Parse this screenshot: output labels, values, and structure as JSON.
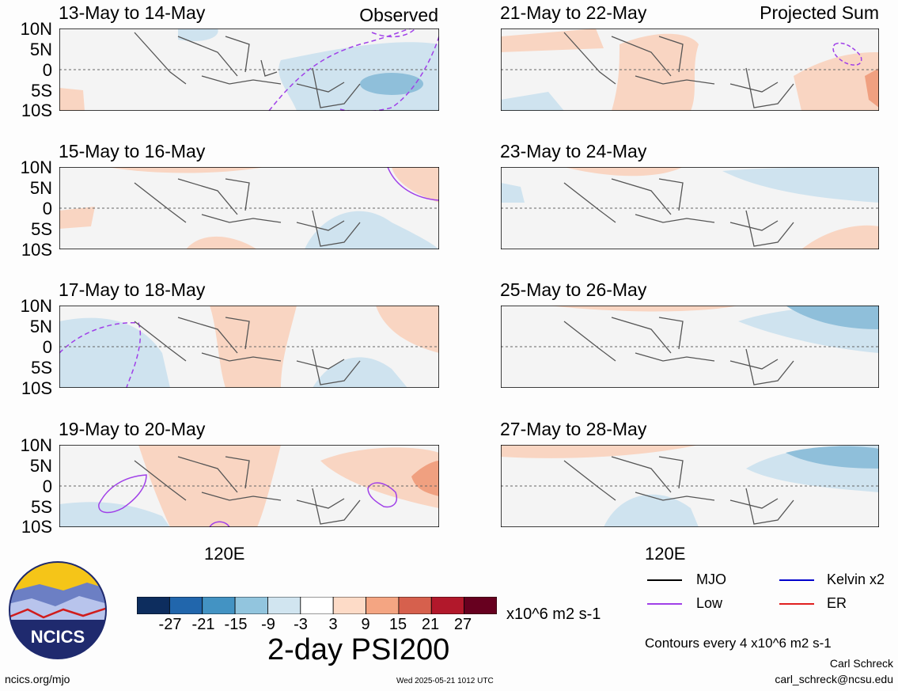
{
  "header": {
    "observed_label": "Observed",
    "projected_label": "Projected Sum"
  },
  "panels": [
    {
      "title": "13-May to 14-May",
      "column": "observed"
    },
    {
      "title": "15-May to 16-May",
      "column": "observed"
    },
    {
      "title": "17-May to 18-May",
      "column": "observed"
    },
    {
      "title": "19-May to 20-May",
      "column": "observed"
    },
    {
      "title": "21-May to 22-May",
      "column": "projected"
    },
    {
      "title": "23-May to 24-May",
      "column": "projected"
    },
    {
      "title": "25-May to 26-May",
      "column": "projected"
    },
    {
      "title": "27-May to 28-May",
      "column": "projected"
    }
  ],
  "axes": {
    "lat_labels": [
      "10N",
      "5N",
      "0",
      "5S",
      "10S"
    ],
    "lon_label": "120E"
  },
  "colorbar": {
    "ticks": [
      "-27",
      "-21",
      "-15",
      "-9",
      "-3",
      "3",
      "9",
      "15",
      "21",
      "27"
    ],
    "colors": [
      "#0d2d5e",
      "#2166ac",
      "#4393c3",
      "#92c5de",
      "#d1e5f0",
      "#ffffff",
      "#fddbc7",
      "#f4a582",
      "#d6604d",
      "#b2182b",
      "#67001f"
    ],
    "units": "x10^6 m2 s-1",
    "title": "2-day PSI200"
  },
  "legend": {
    "mjo": "MJO",
    "low": "Low",
    "kelvin": "Kelvin x2",
    "er": "ER",
    "colors": {
      "mjo": "#000000",
      "low": "#a040e8",
      "kelvin": "#0000cc",
      "er": "#e02020"
    }
  },
  "footer": {
    "contours_note": "Contours every 4 x10^6 m2 s-1",
    "author": "Carl Schreck",
    "email": "carl_schreck@ncsu.edu",
    "site": "ncics.org/mjo",
    "timestamp": "Wed 2025-05-21 1012 UTC",
    "logo_text": "NCICS"
  },
  "chart_data": {
    "type": "heatmap",
    "variable": "2-day PSI200",
    "lat_range": [
      -10,
      10
    ],
    "contour_interval": 4,
    "panels_shading_summary": [
      {
        "title": "13-May to 14-May",
        "negative_region": "east of 125E, minimum near -15 around 5S 140E",
        "positive_region": "weak near 10S west edge"
      },
      {
        "title": "15-May to 16-May",
        "negative_region": "weak south-east near 5S-10S 130E-140E",
        "positive_region": "weak north-east corner and south-west"
      },
      {
        "title": "17-May to 18-May",
        "negative_region": "west and south-east",
        "positive_region": "central band near 120E-125E and east"
      },
      {
        "title": "19-May to 20-May",
        "negative_region": "weak south-west",
        "positive_region": "central and east, strongest near east edge around 9 to 15"
      },
      {
        "title": "21-May to 22-May",
        "negative_region": "weak",
        "positive_region": "around 120E and south-east"
      },
      {
        "title": "23-May to 24-May",
        "negative_region": "north-east and west",
        "positive_region": "north and south-east weak"
      },
      {
        "title": "25-May to 26-May",
        "negative_region": "north-east, about -9",
        "positive_region": "weak north"
      },
      {
        "title": "27-May to 28-May",
        "negative_region": "north-east and south near 120E",
        "positive_region": "weak north-west"
      }
    ]
  }
}
